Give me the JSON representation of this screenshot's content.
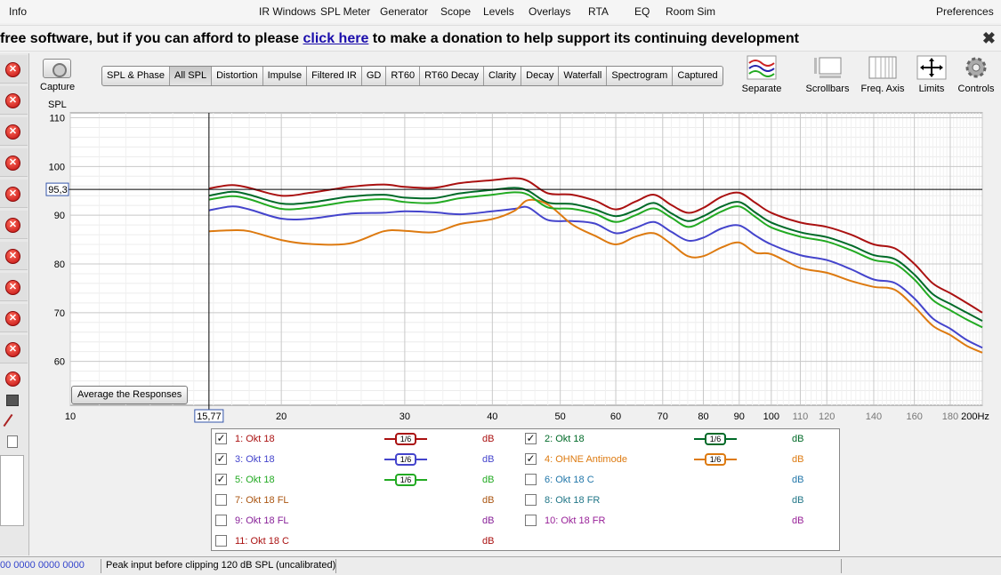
{
  "menu": {
    "info": "Info",
    "items": [
      "IR Windows",
      "SPL Meter",
      "Generator",
      "Scope",
      "Levels",
      "Overlays",
      "RTA",
      "EQ",
      "Room Sim"
    ],
    "preferences": "Preferences"
  },
  "donation": {
    "prefix": "free software, but if you can afford to please ",
    "link": "click here",
    "suffix": " to make a donation to help support its continuing development",
    "close_glyph": "✖"
  },
  "capture": {
    "label": "Capture",
    "icon": "camera-icon"
  },
  "tabs": [
    "SPL & Phase",
    "All SPL",
    "Distortion",
    "Impulse",
    "Filtered IR",
    "GD",
    "RT60",
    "RT60 Decay",
    "Clarity",
    "Decay",
    "Waterfall",
    "Spectrogram",
    "Captured"
  ],
  "active_tab": "All SPL",
  "tools": [
    {
      "label": "Separate",
      "icon": "separate-icon"
    },
    {
      "label": "Scrollbars",
      "icon": "scrollbars-icon"
    },
    {
      "label": "Freq. Axis",
      "icon": "freq-axis-icon"
    },
    {
      "label": "Limits",
      "icon": "limits-icon"
    },
    {
      "label": "Controls",
      "icon": "gear-icon"
    }
  ],
  "chart": {
    "ylabel": "SPL",
    "cursor_x_label": "15,77",
    "cursor_y_label": "95,3",
    "avg_button": "Average the Responses",
    "x_tick_labels": [
      "10",
      "20",
      "30",
      "40",
      "50",
      "60",
      "70",
      "80",
      "90",
      "100",
      "110",
      "120",
      "140",
      "160",
      "180",
      "200Hz"
    ],
    "y_tick_labels": [
      "110",
      "100",
      "90",
      "80",
      "70",
      "60"
    ]
  },
  "chart_data": {
    "type": "line",
    "x_scale": "log",
    "xlim": [
      10,
      200
    ],
    "ylim": [
      51,
      111
    ],
    "x_ticks": [
      10,
      20,
      30,
      40,
      50,
      60,
      70,
      80,
      90,
      100,
      110,
      120,
      140,
      160,
      180,
      200
    ],
    "y_ticks": [
      110,
      100,
      90,
      80,
      70,
      60
    ],
    "cursor": {
      "x": 15.77,
      "y": 95.3
    },
    "grid": true,
    "series": [
      {
        "name": "1: Okt 18",
        "color": "#aa1111",
        "x": [
          15.77,
          17,
          18,
          20,
          22,
          25,
          28,
          30,
          33,
          36,
          40,
          43,
          45,
          48,
          52,
          56,
          60,
          64,
          68,
          72,
          76,
          80,
          85,
          90,
          95,
          100,
          110,
          120,
          130,
          140,
          150,
          160,
          170,
          180,
          190,
          200
        ],
        "y": [
          95.5,
          96.2,
          95.6,
          94,
          94.6,
          95.8,
          96.3,
          95.8,
          95.6,
          96.6,
          97.2,
          97.6,
          97,
          94.5,
          94.2,
          93,
          91.2,
          92.8,
          94.2,
          92.1,
          90.5,
          91.5,
          93.8,
          94.6,
          92.5,
          90.5,
          88.5,
          87.6,
          86,
          84,
          83.2,
          80,
          76,
          74,
          72,
          70
        ]
      },
      {
        "name": "2: Okt 18",
        "color": "#006a28",
        "x": [
          15.77,
          17,
          18,
          20,
          22,
          25,
          28,
          30,
          33,
          36,
          40,
          43,
          45,
          48,
          52,
          56,
          60,
          64,
          68,
          72,
          76,
          80,
          85,
          90,
          95,
          100,
          110,
          120,
          130,
          140,
          150,
          160,
          170,
          180,
          190,
          200
        ],
        "y": [
          94,
          94.8,
          94.2,
          92.4,
          92.6,
          93.8,
          94.2,
          93.6,
          93.5,
          94.5,
          95.2,
          95.6,
          95,
          92.6,
          92.3,
          91.2,
          89.8,
          91,
          92.5,
          90.4,
          88.8,
          89.8,
          91.8,
          92.7,
          90.5,
          88.5,
          86.5,
          85.5,
          83.8,
          81.8,
          81,
          77.8,
          73.8,
          71.8,
          70,
          68.3
        ]
      },
      {
        "name": "3: Okt 18",
        "color": "#4444cc",
        "x": [
          15.77,
          17,
          18,
          20,
          22,
          25,
          28,
          30,
          33,
          36,
          40,
          43,
          45,
          48,
          52,
          56,
          60,
          64,
          68,
          72,
          76,
          80,
          85,
          90,
          95,
          100,
          110,
          120,
          130,
          140,
          150,
          160,
          170,
          180,
          190,
          200
        ],
        "y": [
          91,
          91.8,
          91.2,
          89.3,
          89.3,
          90.3,
          90.5,
          90.8,
          90.6,
          90.2,
          90.8,
          91.3,
          91.6,
          89,
          88.8,
          88.3,
          86.3,
          87.4,
          88.6,
          86.6,
          84.8,
          85.4,
          87.3,
          87.9,
          85.8,
          84,
          81.8,
          80.8,
          78.9,
          76.8,
          76.1,
          72.9,
          68.8,
          66.7,
          64.4,
          62.8
        ]
      },
      {
        "name": "4: OHNE Antimode",
        "color": "#dd7a10",
        "x": [
          15.77,
          17,
          18,
          20,
          22,
          25,
          28,
          30,
          33,
          36,
          40,
          43,
          45,
          48,
          52,
          56,
          60,
          64,
          68,
          72,
          76,
          80,
          85,
          90,
          95,
          100,
          110,
          120,
          130,
          140,
          150,
          160,
          170,
          180,
          190,
          200
        ],
        "y": [
          86.7,
          86.9,
          86.7,
          84.9,
          84.1,
          84.2,
          86.7,
          86.8,
          86.5,
          88.2,
          89.2,
          90.9,
          93.1,
          92.2,
          88.1,
          85.8,
          84,
          85.6,
          86.3,
          84.1,
          81.6,
          81.6,
          83.4,
          84.4,
          82.3,
          82,
          79.2,
          78.2,
          76.5,
          75.3,
          74.7,
          71.2,
          67.3,
          65.4,
          63.2,
          61.8
        ]
      },
      {
        "name": "5: Okt 18",
        "color": "#22aa22",
        "x": [
          15.77,
          17,
          18,
          20,
          22,
          25,
          28,
          30,
          33,
          36,
          40,
          43,
          45,
          48,
          52,
          56,
          60,
          64,
          68,
          72,
          76,
          80,
          85,
          90,
          95,
          100,
          110,
          120,
          130,
          140,
          150,
          160,
          170,
          180,
          190,
          200
        ],
        "y": [
          93.2,
          93.9,
          93.3,
          91.3,
          91.6,
          92.8,
          93.3,
          92.7,
          92.5,
          93.5,
          94.2,
          94.7,
          94.2,
          91.6,
          91.3,
          90.3,
          88.6,
          90,
          91.4,
          89.5,
          87.6,
          88.8,
          90.8,
          91.8,
          89.6,
          87.5,
          85.6,
          84.6,
          82.8,
          80.8,
          80,
          76.8,
          72.6,
          70.5,
          68.6,
          67
        ]
      }
    ]
  },
  "legend": [
    {
      "checked": true,
      "glyph": "✓",
      "name": "1: Okt 18",
      "color": "#aa1111",
      "smoothing": "1/6",
      "unit": "dB",
      "col": 0,
      "row": 0
    },
    {
      "checked": true,
      "glyph": "✓",
      "name": "2: Okt 18",
      "color": "#006a28",
      "smoothing": "1/6",
      "unit": "dB",
      "col": 1,
      "row": 0
    },
    {
      "checked": true,
      "glyph": "✓",
      "name": "3: Okt 18",
      "color": "#4444cc",
      "smoothing": "1/6",
      "unit": "dB",
      "col": 0,
      "row": 1
    },
    {
      "checked": true,
      "glyph": "✓",
      "name": "4: OHNE Antimode",
      "color": "#dd7a10",
      "smoothing": "1/6",
      "unit": "dB",
      "col": 1,
      "row": 1
    },
    {
      "checked": true,
      "glyph": "✓",
      "name": "5: Okt 18",
      "color": "#22aa22",
      "smoothing": "1/6",
      "unit": "dB",
      "col": 0,
      "row": 2
    },
    {
      "checked": false,
      "glyph": "",
      "name": "6: Okt 18 C",
      "color": "#2277aa",
      "smoothing": "",
      "unit": "dB",
      "col": 1,
      "row": 2
    },
    {
      "checked": false,
      "glyph": "",
      "name": "7: Okt 18 FL",
      "color": "#aa5511",
      "smoothing": "",
      "unit": "dB",
      "col": 0,
      "row": 3
    },
    {
      "checked": false,
      "glyph": "",
      "name": "8: Okt 18 FR",
      "color": "#227788",
      "smoothing": "",
      "unit": "dB",
      "col": 1,
      "row": 3
    },
    {
      "checked": false,
      "glyph": "",
      "name": "9: Okt 18 FL",
      "color": "#882299",
      "smoothing": "",
      "unit": "dB",
      "col": 0,
      "row": 4
    },
    {
      "checked": false,
      "glyph": "",
      "name": "10: Okt 18 FR",
      "color": "#992299",
      "smoothing": "",
      "unit": "dB",
      "col": 1,
      "row": 4
    },
    {
      "checked": false,
      "glyph": "",
      "name": "11: Okt 18 C",
      "color": "#aa1111",
      "smoothing": "",
      "unit": "dB",
      "col": 0,
      "row": 5
    }
  ],
  "status": {
    "levels": "00 0000  0000 0000",
    "message": "Peak input before clipping 120 dB SPL (uncalibrated)"
  },
  "colors": {
    "cursor_box_border": "#3355aa",
    "status_levels": "#3344cc",
    "close_red": "#cc1111"
  }
}
